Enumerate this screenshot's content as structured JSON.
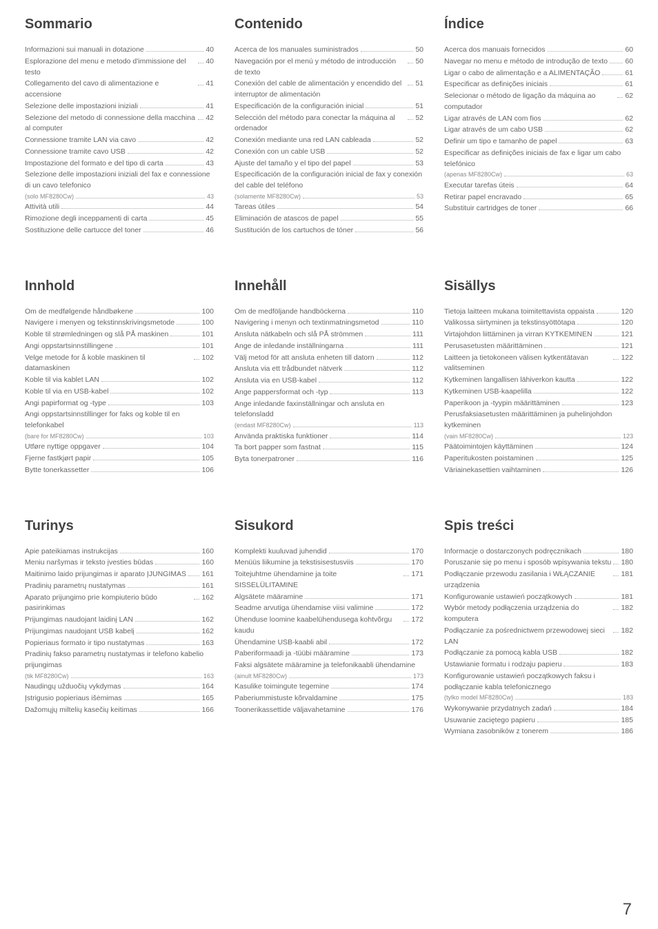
{
  "page_number": "7",
  "sections": [
    {
      "heading": "Sommario",
      "items": [
        {
          "t": "Informazioni sui manuali in dotazione",
          "p": "40"
        },
        {
          "t": "Esplorazione del menu e metodo d'immissione del testo",
          "p": "40"
        },
        {
          "t": "Collegamento del cavo di alimentazione e accensione",
          "p": "41"
        },
        {
          "t": "Selezione delle impostazioni iniziali",
          "p": "41"
        },
        {
          "t": "Selezione del metodo di connessione della macchina al computer",
          "p": "42"
        },
        {
          "t": "Connessione tramite LAN via cavo",
          "p": "42"
        },
        {
          "t": "Connessione tramite cavo USB",
          "p": "42"
        },
        {
          "t": "Impostazione del formato e del tipo di carta",
          "p": "43"
        },
        {
          "t": "Selezione delle impostazioni iniziali del fax e connessione di un cavo telefonico",
          "p": ""
        },
        {
          "t": "(solo MF8280Cw)",
          "p": "43",
          "sub": true
        },
        {
          "t": "Attività utili",
          "p": "44"
        },
        {
          "t": "Rimozione degli inceppamenti di carta",
          "p": "45"
        },
        {
          "t": "Sostituzione delle cartucce del toner",
          "p": "46"
        }
      ]
    },
    {
      "heading": "Contenido",
      "items": [
        {
          "t": "Acerca de los manuales suministrados",
          "p": "50"
        },
        {
          "t": "Navegación por el menú y método de introducción de texto",
          "p": "50"
        },
        {
          "t": "Conexión del cable de alimentación y encendido del interruptor de alimentación",
          "p": "51"
        },
        {
          "t": "Especificación de la configuración inicial",
          "p": "51"
        },
        {
          "t": "Selección del método para conectar la máquina al ordenador",
          "p": "52"
        },
        {
          "t": "Conexión mediante una red LAN cableada",
          "p": "52"
        },
        {
          "t": "Conexión con un cable USB",
          "p": "52"
        },
        {
          "t": "Ajuste del tamaño y el tipo del papel",
          "p": "53"
        },
        {
          "t": "Especificación de la configuración inicial de fax y conexión del cable del teléfono",
          "p": ""
        },
        {
          "t": "(solamente MF8280Cw)",
          "p": "53",
          "sub": true
        },
        {
          "t": "Tareas útiles",
          "p": "54"
        },
        {
          "t": "Eliminación de atascos de papel",
          "p": "55"
        },
        {
          "t": "Sustitución de los cartuchos de tóner",
          "p": "56"
        }
      ]
    },
    {
      "heading": "Índice",
      "items": [
        {
          "t": "Acerca dos manuais fornecidos",
          "p": "60"
        },
        {
          "t": "Navegar no menu e método de introdução de texto",
          "p": "60"
        },
        {
          "t": "Ligar o cabo de alimentação e a ALIMENTAÇÃO",
          "p": "61"
        },
        {
          "t": "Especificar as definições iniciais",
          "p": "61"
        },
        {
          "t": "Selecionar o método de ligação da máquina ao computador",
          "p": "62"
        },
        {
          "t": "Ligar através de LAN com fios",
          "p": "62"
        },
        {
          "t": "Ligar através de um cabo USB",
          "p": "62"
        },
        {
          "t": "Definir um tipo e tamanho de papel",
          "p": "63"
        },
        {
          "t": "Especificar as definições iniciais de fax e ligar um cabo telefónico",
          "p": ""
        },
        {
          "t": "(apenas MF8280Cw)",
          "p": "63",
          "sub": true
        },
        {
          "t": "Executar tarefas úteis",
          "p": "64"
        },
        {
          "t": "Retirar papel encravado",
          "p": "65"
        },
        {
          "t": "Substituir cartridges de toner",
          "p": "66"
        }
      ]
    },
    {
      "heading": "Innhold",
      "items": [
        {
          "t": "Om de medfølgende håndbøkene",
          "p": "100"
        },
        {
          "t": "Navigere i menyen og tekstinnskrivingsmetode",
          "p": "100"
        },
        {
          "t": "Koble til strømledningen og slå PÅ maskinen",
          "p": "101"
        },
        {
          "t": "Angi oppstartsinnstillingene",
          "p": "101"
        },
        {
          "t": "Velge metode for å koble maskinen til datamaskinen",
          "p": "102"
        },
        {
          "t": "Koble til via kablet LAN",
          "p": "102"
        },
        {
          "t": "Koble til via en USB-kabel",
          "p": "102"
        },
        {
          "t": "Angi papirformat og -type",
          "p": "103"
        },
        {
          "t": "Angi oppstartsinnstillinger for faks og koble til en telefonkabel",
          "p": ""
        },
        {
          "t": "(bare for MF8280Cw)",
          "p": "103",
          "sub": true
        },
        {
          "t": "Utføre nyttige oppgaver",
          "p": "104"
        },
        {
          "t": "Fjerne fastkjørt papir",
          "p": "105"
        },
        {
          "t": "Bytte tonerkassetter",
          "p": "106"
        }
      ]
    },
    {
      "heading": "Innehåll",
      "items": [
        {
          "t": "Om de medföljande handböckerna",
          "p": "110"
        },
        {
          "t": "Navigering i menyn och textinmatningsmetod",
          "p": "110"
        },
        {
          "t": "Ansluta nätkabeln och slå PÅ strömmen",
          "p": "111"
        },
        {
          "t": "Ange de inledande inställningarna",
          "p": "111"
        },
        {
          "t": "Välj metod för att ansluta enheten till datorn",
          "p": "112"
        },
        {
          "t": "Ansluta via ett trådbundet nätverk",
          "p": "112"
        },
        {
          "t": "Ansluta via en USB-kabel",
          "p": "112"
        },
        {
          "t": "Ange pappersformat och -typ",
          "p": "113"
        },
        {
          "t": "Ange inledande faxinställningar och ansluta en telefonsladd",
          "p": ""
        },
        {
          "t": "(endast MF8280Cw)",
          "p": "113",
          "sub": true
        },
        {
          "t": "Använda praktiska funktioner",
          "p": "114"
        },
        {
          "t": "Ta bort papper som fastnat",
          "p": "115"
        },
        {
          "t": "Byta tonerpatroner",
          "p": "116"
        }
      ]
    },
    {
      "heading": "Sisällys",
      "items": [
        {
          "t": "Tietoja laitteen mukana toimitettavista oppaista",
          "p": "120"
        },
        {
          "t": "Valikossa siirtyminen ja tekstinsyöttötapa",
          "p": "120"
        },
        {
          "t": "Virtajohdon liittäminen ja virran KYTKEMINEN",
          "p": "121"
        },
        {
          "t": "Perusasetusten määrittäminen",
          "p": "121"
        },
        {
          "t": "Laitteen ja tietokoneen välisen kytkentätavan valitseminen",
          "p": "122"
        },
        {
          "t": "Kytkeminen langallisen lähiverkon kautta",
          "p": "122"
        },
        {
          "t": "Kytkeminen USB-kaapelilla",
          "p": "122"
        },
        {
          "t": "Paperikoon ja -tyypin määrittäminen",
          "p": "123"
        },
        {
          "t": "Perusfaksiasetusten määrittäminen ja puhelinjohdon kytkeminen",
          "p": ""
        },
        {
          "t": "(vain MF8280Cw)",
          "p": "123",
          "sub": true
        },
        {
          "t": "Päätoimintojen käyttäminen",
          "p": "124"
        },
        {
          "t": "Paperitukosten poistaminen",
          "p": "125"
        },
        {
          "t": "Väriainekasettien vaihtaminen",
          "p": "126"
        }
      ]
    },
    {
      "heading": "Turinys",
      "items": [
        {
          "t": "Apie pateikiamas instrukcijas",
          "p": "160"
        },
        {
          "t": "Meniu naršymas ir teksto įvesties būdas",
          "p": "160"
        },
        {
          "t": "Maitinimo laido prijungimas ir aparato ĮJUNGIMAS",
          "p": "161"
        },
        {
          "t": "Pradinių parametrų nustatymas",
          "p": "161"
        },
        {
          "t": "Aparato prijungimo prie kompiuterio būdo pasirinkimas",
          "p": "162"
        },
        {
          "t": "Prijungimas naudojant laidinį LAN",
          "p": "162"
        },
        {
          "t": "Prijungimas naudojant USB kabelį",
          "p": "162"
        },
        {
          "t": "Popieriaus formato ir tipo nustatymas",
          "p": "163"
        },
        {
          "t": "Pradinių fakso parametrų nustatymas ir telefono kabelio prijungimas",
          "p": ""
        },
        {
          "t": "(tik MF8280Cw)",
          "p": "163",
          "sub": true
        },
        {
          "t": "Naudingų užduočių vykdymas",
          "p": "164"
        },
        {
          "t": "Įstrigusio popieriaus išėmimas",
          "p": "165"
        },
        {
          "t": "Dažomųjų miltelių kasečių keitimas",
          "p": "166"
        }
      ]
    },
    {
      "heading": "Sisukord",
      "items": [
        {
          "t": "Komplekti kuuluvad juhendid",
          "p": "170"
        },
        {
          "t": "Menüüs liikumine ja tekstisisestusviis",
          "p": "170"
        },
        {
          "t": "Toitejuhtme ühendamine ja toite SISSELÜLITAMINE",
          "p": "171"
        },
        {
          "t": "Algsätete määramine",
          "p": "171"
        },
        {
          "t": "Seadme arvutiga ühendamise viisi valimine",
          "p": "172"
        },
        {
          "t": "Ühenduse loomine kaabelühendusega kohtvõrgu kaudu",
          "p": "172"
        },
        {
          "t": "Ühendamine USB-kaabli abil",
          "p": "172"
        },
        {
          "t": "Paberiformaadi ja -tüübi määramine",
          "p": "173"
        },
        {
          "t": "Faksi algsätete määramine ja telefonikaabli ühendamine",
          "p": ""
        },
        {
          "t": "(ainult MF8280Cw)",
          "p": "173",
          "sub": true
        },
        {
          "t": "Kasulike toimingute tegemine",
          "p": "174"
        },
        {
          "t": "Paberiummistuste kõrvaldamine",
          "p": "175"
        },
        {
          "t": "Toonerikassettide väljavahetamine",
          "p": "176"
        }
      ]
    },
    {
      "heading": "Spis treści",
      "items": [
        {
          "t": "Informacje o dostarczonych podręcznikach",
          "p": "180"
        },
        {
          "t": "Poruszanie się po menu i sposób wpisywania tekstu",
          "p": "180"
        },
        {
          "t": "Podłączanie przewodu zasilania i WŁĄCZANIE urządzenia",
          "p": "181"
        },
        {
          "t": "Konfigurowanie ustawień początkowych",
          "p": "181"
        },
        {
          "t": "Wybór metody podłączenia urządzenia do komputera",
          "p": "182"
        },
        {
          "t": "Podłączanie za pośrednictwem przewodowej sieci LAN",
          "p": "182"
        },
        {
          "t": "Podłączanie za pomocą kabla USB",
          "p": "182"
        },
        {
          "t": "Ustawianie formatu i rodzaju papieru",
          "p": "183"
        },
        {
          "t": "Konfigurowanie ustawień początkowych faksu i podłączanie kabla telefonicznego",
          "p": ""
        },
        {
          "t": "(tylko model MF8280Cw)",
          "p": "183",
          "sub": true
        },
        {
          "t": "Wykonywanie przydatnych zadań",
          "p": "184"
        },
        {
          "t": "Usuwanie zaciętego papieru",
          "p": "185"
        },
        {
          "t": "Wymiana zasobników z tonerem",
          "p": "186"
        }
      ]
    }
  ]
}
